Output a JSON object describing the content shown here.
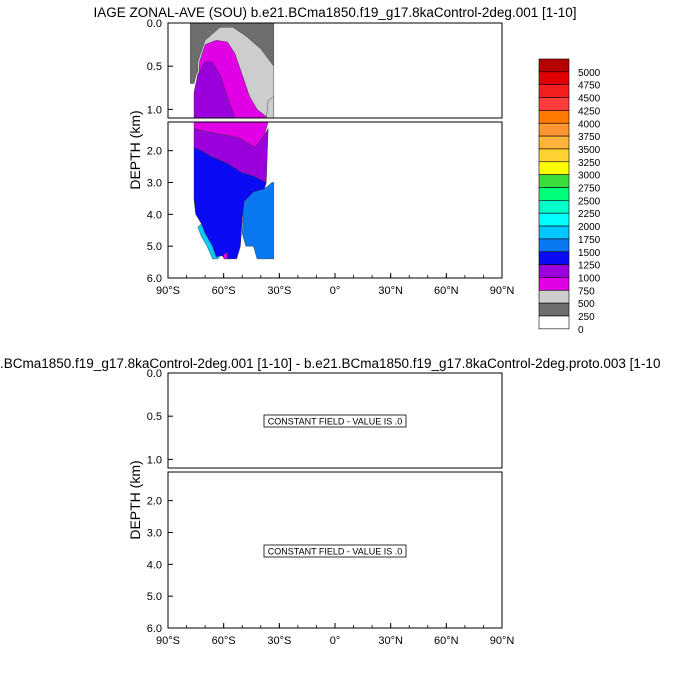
{
  "chart_data": [
    {
      "type": "contour",
      "title": "IAGE ZONAL-AVE (SOU) b.e21.BCma1850.f19_g17.8kaControl-2deg.001 [1-10]",
      "ylabel": "DEPTH (km)",
      "xlim": [
        -90,
        90
      ],
      "ylim_top_panel": [
        0.0,
        1.1
      ],
      "ylim_bottom_panel": [
        1.1,
        6.0
      ],
      "y_reversed": true,
      "x_ticks": [
        "90°S",
        "60°S",
        "30°S",
        "0°",
        "30°N",
        "60°N",
        "90°N"
      ],
      "x_tick_values": [
        -90,
        -60,
        -30,
        0,
        30,
        60,
        90
      ],
      "y_ticks_top": [
        "0.0",
        "0.5",
        "1.0"
      ],
      "y_tick_values_top": [
        0.0,
        0.5,
        1.0
      ],
      "y_ticks_bottom": [
        "2.0",
        "3.0",
        "4.0",
        "5.0",
        "6.0"
      ],
      "y_tick_values_bottom": [
        2.0,
        3.0,
        4.0,
        5.0,
        6.0
      ],
      "data_lat_range": [
        -78,
        -33
      ],
      "fields": [
        {
          "level": 250,
          "color": "#6e6e6e",
          "lat_range": [
            -78,
            -33
          ],
          "depth_range": [
            0.0,
            0.7
          ]
        },
        {
          "level": 500,
          "color": "#cdcdcd",
          "lat_range": [
            -53,
            -33
          ],
          "depth_range": [
            0.35,
            1.1
          ]
        },
        {
          "level": 750,
          "color": "#e100e6",
          "lat_range": [
            -74,
            -35
          ],
          "depth_range": [
            0.2,
            1.8
          ]
        },
        {
          "level": 1000,
          "color": "#9b00dc",
          "lat_range": [
            -76,
            -37
          ],
          "depth_range": [
            0.5,
            3.0
          ]
        },
        {
          "level": 1250,
          "color": "#0a0af5",
          "lat_range": [
            -76,
            -38
          ],
          "depth_range": [
            1.9,
            5.4
          ]
        },
        {
          "level": 1500,
          "color": "#0a78f0",
          "lat_range": [
            -51,
            -34
          ],
          "depth_range": [
            2.8,
            5.4
          ]
        },
        {
          "level": 1750,
          "color": "#0ac8fa",
          "lat_range": [
            -75,
            -57
          ],
          "depth_range": [
            4.6,
            5.3
          ]
        }
      ]
    },
    {
      "type": "contour",
      "title": ".BCma1850.f19_g17.8kaControl-2deg.001 [1-10] - b.e21.BCma1850.f19_g17.8kaControl-2deg.proto.003 [1-10",
      "ylabel": "DEPTH (km)",
      "xlim": [
        -90,
        90
      ],
      "ylim_top_panel": [
        0.0,
        1.1
      ],
      "ylim_bottom_panel": [
        1.1,
        6.0
      ],
      "y_reversed": true,
      "x_ticks": [
        "90°S",
        "60°S",
        "30°S",
        "0°",
        "30°N",
        "60°N",
        "90°N"
      ],
      "y_ticks_top": [
        "0.0",
        "0.5",
        "1.0"
      ],
      "y_ticks_bottom": [
        "2.0",
        "3.0",
        "4.0",
        "5.0",
        "6.0"
      ],
      "constant_field_text": "CONSTANT FIELD - VALUE IS .0",
      "constant_value": 0
    }
  ],
  "colorbar": {
    "labels": [
      "5000",
      "4750",
      "4500",
      "4250",
      "4000",
      "3750",
      "3500",
      "3250",
      "3000",
      "2750",
      "2500",
      "2250",
      "2000",
      "1750",
      "1500",
      "1250",
      "1000",
      "750",
      "500",
      "250",
      "0"
    ],
    "colors": [
      "#b40000",
      "#e10000",
      "#f51e1e",
      "#ff3c3c",
      "#ff7800",
      "#ff9632",
      "#ffb43c",
      "#ffd232",
      "#ffff00",
      "#3cdc3c",
      "#00ff78",
      "#00ffc8",
      "#00ffff",
      "#00c8ff",
      "#0a78f0",
      "#0a0af5",
      "#9b00dc",
      "#e100e6",
      "#cdcdcd",
      "#6e6e6e",
      "#ffffff"
    ]
  }
}
